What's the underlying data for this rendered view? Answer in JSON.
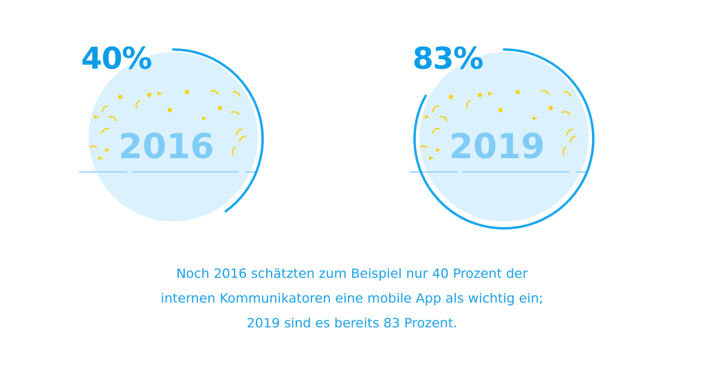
{
  "colors": {
    "accent": "#0d9ce8",
    "arc": "#1aa6f0",
    "circle_fill": "#dbf1fd",
    "year_text": "#80ccf7",
    "horizon": "#9fd6f8",
    "confetti": "#f5d21f",
    "caption": "#1aa0e8"
  },
  "chart_data": {
    "type": "pie",
    "title": "",
    "series": [
      {
        "name": "2016",
        "label": "2016",
        "value_label": "40%",
        "value": 40
      },
      {
        "name": "2019",
        "label": "2019",
        "value_label": "83%",
        "value": 83
      }
    ],
    "unit": "percent",
    "max": 100
  },
  "caption": {
    "line1": "Noch 2016 schätzten zum Beispiel nur 40 Prozent der",
    "line2": "internen Kommunikatoren eine mobile App als wichtig ein;",
    "line3": "2019 sind es bereits 83 Prozent."
  }
}
